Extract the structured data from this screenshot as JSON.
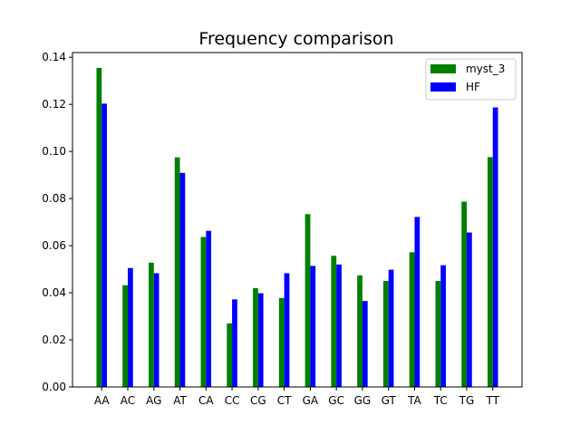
{
  "chart_data": {
    "type": "bar",
    "title": "Frequency comparison",
    "xlabel": "",
    "ylabel": "",
    "categories": [
      "AA",
      "AC",
      "AG",
      "AT",
      "CA",
      "CC",
      "CG",
      "CT",
      "GA",
      "GC",
      "GG",
      "GT",
      "TA",
      "TC",
      "TG",
      "TT"
    ],
    "series": [
      {
        "name": "myst_3",
        "color": "#008000",
        "values": [
          0.1355,
          0.0432,
          0.0528,
          0.0975,
          0.0637,
          0.027,
          0.042,
          0.0378,
          0.0734,
          0.0557,
          0.0474,
          0.045,
          0.0572,
          0.045,
          0.0787,
          0.0976
        ]
      },
      {
        "name": "HF",
        "color": "#0000ff",
        "values": [
          0.1203,
          0.0505,
          0.0483,
          0.0909,
          0.0663,
          0.0372,
          0.0398,
          0.0483,
          0.0514,
          0.052,
          0.0365,
          0.0498,
          0.0722,
          0.0517,
          0.0656,
          0.1187
        ]
      }
    ],
    "ylim": [
      0,
      0.142
    ],
    "yticks": [
      "0.00",
      "0.02",
      "0.04",
      "0.06",
      "0.08",
      "0.10",
      "0.12",
      "0.14"
    ],
    "legend_position": "upper right",
    "grid": false
  }
}
